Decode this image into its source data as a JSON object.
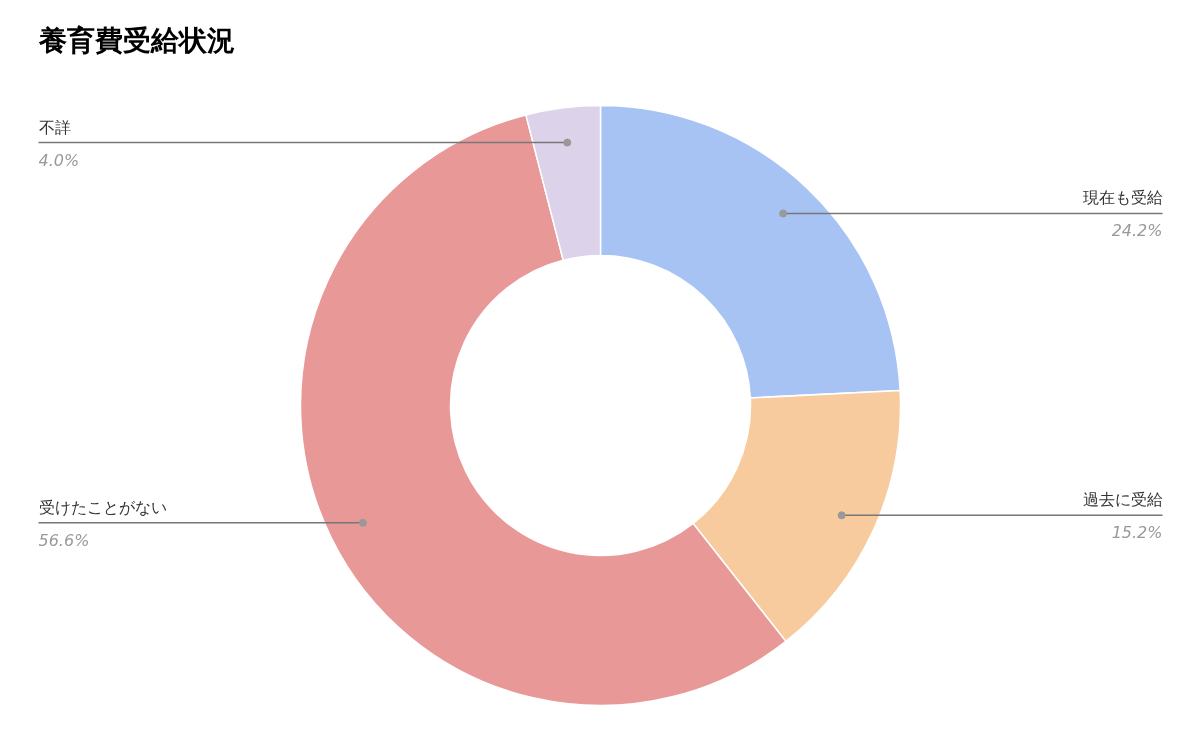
{
  "chart_data": {
    "type": "donut",
    "title": "養育費受給状況",
    "categories": [
      "現在も受給",
      "過去に受給",
      "受けたことがない",
      "不詳"
    ],
    "values": [
      24.2,
      15.2,
      56.6,
      4.0
    ],
    "colors": [
      "#a7c3f4",
      "#f8cb9e",
      "#e99898",
      "#dcd2ea"
    ],
    "value_labels": [
      "24.2%",
      "15.2%",
      "56.6%",
      "4.0%"
    ]
  }
}
